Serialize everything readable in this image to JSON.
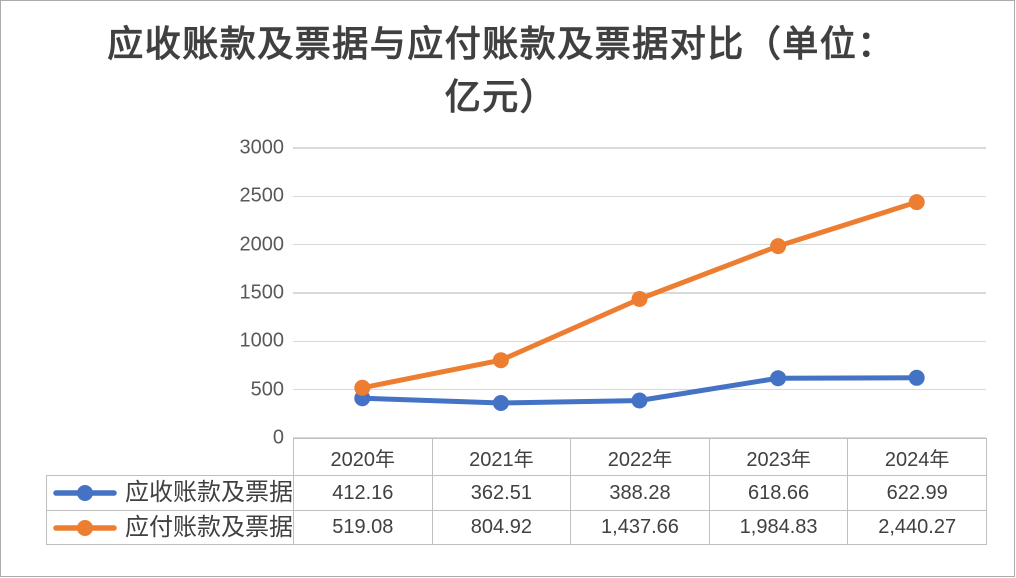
{
  "window": {
    "background": "#FFFFFF",
    "border_color": "#ABABAB"
  },
  "title": {
    "text": "应收账款及票据与应付账款及票据对比（单位：亿元）",
    "line1": "应收账款及票据与应付账款及票据对比（单位：",
    "line2": "亿元）",
    "color": "#404040"
  },
  "chart_data": {
    "type": "line",
    "title": "应收账款及票据与应付账款及票据对比（单位：亿元）",
    "categories": [
      "2020年",
      "2021年",
      "2022年",
      "2023年",
      "2024年"
    ],
    "series": [
      {
        "name": "应收账款及票据",
        "color": "#4472C4",
        "values": [
          412.16,
          362.51,
          388.28,
          618.66,
          622.99
        ],
        "values_formatted": [
          "412.16",
          "362.51",
          "388.28",
          "618.66",
          "622.99"
        ]
      },
      {
        "name": "应付账款及票据",
        "color": "#ED7D31",
        "values": [
          519.08,
          804.92,
          1437.66,
          1984.83,
          2440.27
        ],
        "values_formatted": [
          "519.08",
          "804.92",
          "1,437.66",
          "1,984.83",
          "2,440.27"
        ]
      }
    ],
    "xlabel": "",
    "ylabel": "",
    "ylim": [
      0,
      3000
    ],
    "yticks": [
      0,
      500,
      1000,
      1500,
      2000,
      2500,
      3000
    ],
    "grid": true,
    "marker": "circle",
    "legend_position": "table-left"
  },
  "axis": {
    "tick_label_color": "#595959",
    "gridline_color": "#D9D9D9"
  },
  "table": {
    "border_color": "#BFBFBF",
    "text_color": "#404040"
  }
}
